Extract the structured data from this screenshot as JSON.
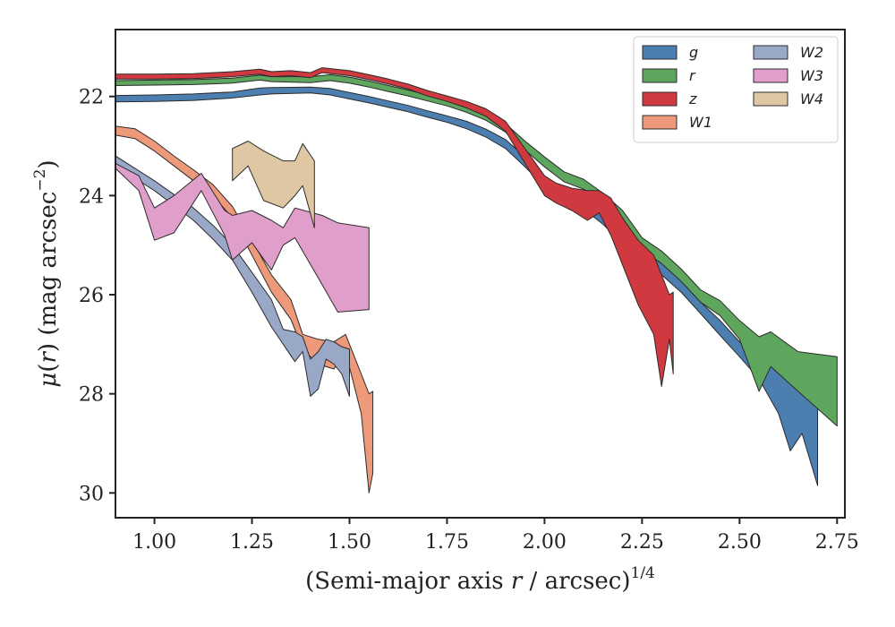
{
  "chart_data": {
    "type": "area",
    "xlabel_prefix": "(Semi-major axis ",
    "xlabel_var": "r",
    "xlabel_suffix": " / arcsec)",
    "xlabel_sup": "1/4",
    "ylabel_prefix": "μ(",
    "ylabel_var": "r",
    "ylabel_suffix": ") (mag arcsec",
    "ylabel_sup": "−2",
    "ylabel_end": ")",
    "xlim": [
      0.9,
      2.77
    ],
    "ylim": [
      30.5,
      20.65
    ],
    "y_inverted": true,
    "xticks": [
      1.0,
      1.25,
      1.5,
      1.75,
      2.0,
      2.25,
      2.5,
      2.75
    ],
    "xtick_labels": [
      "1.00",
      "1.25",
      "1.50",
      "1.75",
      "2.00",
      "2.25",
      "2.50",
      "2.75"
    ],
    "yticks": [
      22,
      24,
      26,
      28,
      30
    ],
    "ytick_labels": [
      "22",
      "24",
      "26",
      "28",
      "30"
    ],
    "grid": false,
    "legend_position": "top-right",
    "legend_columns": 2,
    "series": [
      {
        "name": "g",
        "color": "#4c7faf",
        "points": [
          [
            0.9,
            21.98,
            22.11
          ],
          [
            1.0,
            21.97,
            22.1
          ],
          [
            1.1,
            21.95,
            22.08
          ],
          [
            1.2,
            21.91,
            22.03
          ],
          [
            1.27,
            21.83,
            21.97
          ],
          [
            1.3,
            21.82,
            21.95
          ],
          [
            1.4,
            21.81,
            21.93
          ],
          [
            1.45,
            21.84,
            21.97
          ],
          [
            1.5,
            21.92,
            22.05
          ],
          [
            1.55,
            22.0,
            22.13
          ],
          [
            1.6,
            22.09,
            22.22
          ],
          [
            1.65,
            22.18,
            22.31
          ],
          [
            1.7,
            22.29,
            22.42
          ],
          [
            1.75,
            22.39,
            22.52
          ],
          [
            1.8,
            22.5,
            22.65
          ],
          [
            1.85,
            22.66,
            22.82
          ],
          [
            1.9,
            22.87,
            23.05
          ],
          [
            1.95,
            23.22,
            23.42
          ],
          [
            2.0,
            23.62,
            23.82
          ],
          [
            2.05,
            23.9,
            24.1
          ],
          [
            2.1,
            24.07,
            24.27
          ],
          [
            2.15,
            24.33,
            24.58
          ],
          [
            2.2,
            24.72,
            24.97
          ],
          [
            2.25,
            25.1,
            25.35
          ],
          [
            2.3,
            25.35,
            25.6
          ],
          [
            2.35,
            25.72,
            25.95
          ],
          [
            2.4,
            26.15,
            26.38
          ],
          [
            2.45,
            26.52,
            26.82
          ],
          [
            2.5,
            26.95,
            27.25
          ],
          [
            2.55,
            27.15,
            27.7
          ],
          [
            2.6,
            27.05,
            28.4
          ],
          [
            2.63,
            27.4,
            29.15
          ],
          [
            2.66,
            27.25,
            28.8
          ],
          [
            2.7,
            27.5,
            29.85
          ]
        ]
      },
      {
        "name": "r",
        "color": "#5ea55e",
        "points": [
          [
            0.9,
            21.68,
            21.78
          ],
          [
            1.0,
            21.67,
            21.77
          ],
          [
            1.1,
            21.66,
            21.76
          ],
          [
            1.2,
            21.63,
            21.73
          ],
          [
            1.27,
            21.57,
            21.67
          ],
          [
            1.3,
            21.6,
            21.7
          ],
          [
            1.4,
            21.6,
            21.72
          ],
          [
            1.45,
            21.56,
            21.68
          ],
          [
            1.5,
            21.61,
            21.73
          ],
          [
            1.55,
            21.69,
            21.81
          ],
          [
            1.6,
            21.78,
            21.9
          ],
          [
            1.65,
            21.87,
            21.99
          ],
          [
            1.7,
            21.97,
            22.09
          ],
          [
            1.75,
            22.07,
            22.19
          ],
          [
            1.8,
            22.18,
            22.32
          ],
          [
            1.85,
            22.33,
            22.48
          ],
          [
            1.9,
            22.55,
            22.72
          ],
          [
            1.95,
            22.9,
            23.08
          ],
          [
            2.0,
            23.22,
            23.42
          ],
          [
            2.05,
            23.52,
            23.72
          ],
          [
            2.1,
            23.67,
            23.87
          ],
          [
            2.15,
            23.95,
            24.17
          ],
          [
            2.2,
            24.3,
            24.55
          ],
          [
            2.25,
            24.85,
            25.1
          ],
          [
            2.3,
            25.12,
            25.37
          ],
          [
            2.35,
            25.48,
            25.73
          ],
          [
            2.4,
            25.9,
            26.15
          ],
          [
            2.45,
            26.12,
            26.42
          ],
          [
            2.5,
            26.52,
            26.9
          ],
          [
            2.55,
            26.85,
            27.95
          ],
          [
            2.58,
            26.75,
            27.45
          ],
          [
            2.65,
            27.15,
            27.95
          ],
          [
            2.75,
            27.25,
            28.65
          ]
        ]
      },
      {
        "name": "z",
        "color": "#d0393f",
        "points": [
          [
            0.9,
            21.55,
            21.65
          ],
          [
            1.0,
            21.55,
            21.65
          ],
          [
            1.1,
            21.54,
            21.64
          ],
          [
            1.2,
            21.5,
            21.6
          ],
          [
            1.27,
            21.45,
            21.55
          ],
          [
            1.3,
            21.5,
            21.6
          ],
          [
            1.35,
            21.48,
            21.58
          ],
          [
            1.4,
            21.52,
            21.62
          ],
          [
            1.43,
            21.42,
            21.52
          ],
          [
            1.5,
            21.48,
            21.58
          ],
          [
            1.55,
            21.56,
            21.66
          ],
          [
            1.6,
            21.65,
            21.75
          ],
          [
            1.65,
            21.75,
            21.85
          ],
          [
            1.7,
            21.88,
            21.99
          ],
          [
            1.75,
            21.99,
            22.1
          ],
          [
            1.8,
            22.1,
            22.23
          ],
          [
            1.85,
            22.25,
            22.4
          ],
          [
            1.9,
            22.5,
            22.7
          ],
          [
            1.95,
            23.05,
            23.35
          ],
          [
            2.0,
            23.6,
            24.0
          ],
          [
            2.03,
            23.75,
            24.15
          ],
          [
            2.07,
            23.85,
            24.3
          ],
          [
            2.11,
            23.9,
            24.5
          ],
          [
            2.14,
            23.9,
            24.35
          ],
          [
            2.17,
            24.05,
            24.8
          ],
          [
            2.2,
            24.45,
            25.4
          ],
          [
            2.24,
            24.9,
            26.2
          ],
          [
            2.28,
            25.2,
            26.8
          ],
          [
            2.3,
            25.6,
            27.85
          ],
          [
            2.32,
            26.0,
            26.9
          ],
          [
            2.33,
            25.95,
            27.6
          ]
        ]
      },
      {
        "name": "W1",
        "color": "#ee9a7a",
        "points": [
          [
            0.9,
            22.6,
            22.78
          ],
          [
            0.95,
            22.65,
            22.85
          ],
          [
            1.0,
            22.9,
            23.1
          ],
          [
            1.05,
            23.2,
            23.4
          ],
          [
            1.1,
            23.48,
            23.7
          ],
          [
            1.15,
            23.78,
            24.0
          ],
          [
            1.2,
            24.22,
            24.45
          ],
          [
            1.25,
            24.9,
            25.2
          ],
          [
            1.3,
            25.6,
            25.95
          ],
          [
            1.35,
            26.1,
            26.5
          ],
          [
            1.38,
            26.8,
            27.1
          ],
          [
            1.42,
            26.9,
            27.4
          ],
          [
            1.46,
            26.95,
            27.5
          ],
          [
            1.49,
            26.8,
            27.15
          ],
          [
            1.53,
            27.6,
            28.4
          ],
          [
            1.55,
            28.0,
            30.0
          ],
          [
            1.56,
            27.95,
            29.6
          ]
        ]
      },
      {
        "name": "W2",
        "color": "#9aa8c8",
        "points": [
          [
            0.9,
            23.2,
            23.35
          ],
          [
            0.95,
            23.45,
            23.65
          ],
          [
            1.0,
            23.7,
            23.9
          ],
          [
            1.05,
            23.98,
            24.2
          ],
          [
            1.1,
            24.25,
            24.5
          ],
          [
            1.15,
            24.6,
            24.88
          ],
          [
            1.2,
            25.0,
            25.3
          ],
          [
            1.25,
            25.55,
            25.95
          ],
          [
            1.3,
            26.1,
            26.65
          ],
          [
            1.33,
            26.7,
            27.0
          ],
          [
            1.36,
            26.75,
            27.35
          ],
          [
            1.38,
            26.85,
            27.15
          ],
          [
            1.4,
            27.3,
            28.05
          ],
          [
            1.42,
            27.15,
            27.9
          ],
          [
            1.44,
            26.9,
            27.3
          ],
          [
            1.46,
            26.95,
            27.4
          ],
          [
            1.48,
            27.05,
            27.6
          ],
          [
            1.5,
            27.1,
            28.05
          ]
        ]
      },
      {
        "name": "W3",
        "color": "#e09fcb",
        "points": [
          [
            0.9,
            23.35,
            23.45
          ],
          [
            0.96,
            23.6,
            23.9
          ],
          [
            1.0,
            24.25,
            24.9
          ],
          [
            1.05,
            24.0,
            24.75
          ],
          [
            1.12,
            23.55,
            23.9
          ],
          [
            1.18,
            24.3,
            24.8
          ],
          [
            1.2,
            24.4,
            25.3
          ],
          [
            1.25,
            24.3,
            24.95
          ],
          [
            1.3,
            24.5,
            25.5
          ],
          [
            1.33,
            24.65,
            25.0
          ],
          [
            1.36,
            24.25,
            24.85
          ],
          [
            1.43,
            24.4,
            25.8
          ],
          [
            1.47,
            24.55,
            26.35
          ],
          [
            1.55,
            24.65,
            26.3
          ]
        ]
      },
      {
        "name": "W4",
        "color": "#dfc7a4",
        "points": [
          [
            1.2,
            23.05,
            23.7
          ],
          [
            1.24,
            22.9,
            23.4
          ],
          [
            1.28,
            23.1,
            24.1
          ],
          [
            1.33,
            23.3,
            24.25
          ],
          [
            1.36,
            23.3,
            24.0
          ],
          [
            1.38,
            22.95,
            23.8
          ],
          [
            1.41,
            23.3,
            24.65
          ]
        ]
      }
    ]
  }
}
